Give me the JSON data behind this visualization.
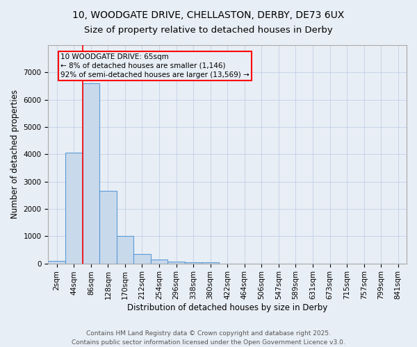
{
  "title_line1": "10, WOODGATE DRIVE, CHELLASTON, DERBY, DE73 6UX",
  "title_line2": "Size of property relative to detached houses in Derby",
  "xlabel": "Distribution of detached houses by size in Derby",
  "ylabel": "Number of detached properties",
  "bar_labels": [
    "2sqm",
    "44sqm",
    "86sqm",
    "128sqm",
    "170sqm",
    "212sqm",
    "254sqm",
    "296sqm",
    "338sqm",
    "380sqm",
    "422sqm",
    "464sqm",
    "506sqm",
    "547sqm",
    "589sqm",
    "631sqm",
    "673sqm",
    "715sqm",
    "757sqm",
    "799sqm",
    "841sqm"
  ],
  "bar_values": [
    100,
    4050,
    6600,
    2650,
    1000,
    350,
    130,
    70,
    50,
    50,
    0,
    0,
    0,
    0,
    0,
    0,
    0,
    0,
    0,
    0,
    0
  ],
  "bar_color_face": "#c9d9ec",
  "bar_color_edge": "#5b9bd5",
  "grid_color": "#c0d0e8",
  "background_color": "#e8eef5",
  "annotation_text": "10 WOODGATE DRIVE: 65sqm\n← 8% of detached houses are smaller (1,146)\n92% of semi-detached houses are larger (13,569) →",
  "footer_line1": "Contains HM Land Registry data © Crown copyright and database right 2025.",
  "footer_line2": "Contains public sector information licensed under the Open Government Licence v3.0.",
  "ylim": [
    0,
    8000
  ],
  "title_fontsize": 10,
  "axis_label_fontsize": 8.5,
  "tick_fontsize": 7.5,
  "footer_fontsize": 6.5,
  "annotation_fontsize": 7.5
}
